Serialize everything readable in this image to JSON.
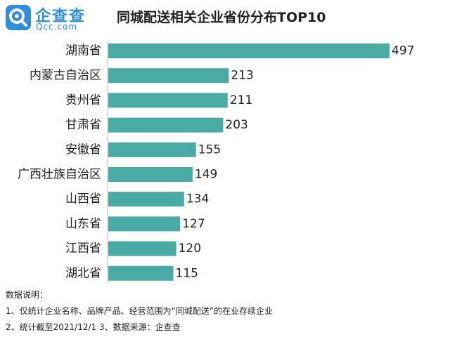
{
  "logo": {
    "brand_cn": "企查查",
    "brand_en": "Qcc.com",
    "mark_icon": "qcc-magnifier-icon",
    "color": "#2d8ee0"
  },
  "title": "同城配送相关企业省份分布TOP10",
  "chart_data": {
    "type": "bar",
    "orientation": "horizontal",
    "title": "同城配送相关企业省份分布TOP10",
    "categories": [
      "湖南省",
      "内蒙古自治区",
      "贵州省",
      "甘肃省",
      "安徽省",
      "广西壮族自治区",
      "山西省",
      "山东省",
      "江西省",
      "湖北省"
    ],
    "values": [
      497,
      213,
      211,
      203,
      155,
      149,
      134,
      127,
      120,
      115
    ],
    "value_labels": [
      "497",
      "213",
      "211",
      "203",
      "155",
      "149",
      "134",
      "127",
      "120",
      "115"
    ],
    "xlim": [
      0,
      497
    ],
    "bar_color": "#4aaba5",
    "grid": false,
    "legend": "none"
  },
  "notes": {
    "heading": "数据说明：",
    "line1": "1、仅统计企业名称、品牌产品、经营范围为“同城配送”的在业存续企业",
    "line2": "2、统计截至2021/12/1    3、数据来源：企查查"
  }
}
